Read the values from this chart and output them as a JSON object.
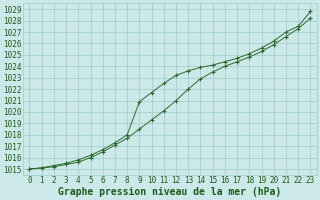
{
  "title": "Graphe pression niveau de la mer (hPa)",
  "x_values": [
    0,
    1,
    2,
    3,
    4,
    5,
    6,
    7,
    8,
    9,
    10,
    11,
    12,
    13,
    14,
    15,
    16,
    17,
    18,
    19,
    20,
    21,
    22,
    23
  ],
  "line1": [
    1015.0,
    1015.1,
    1015.3,
    1015.5,
    1015.8,
    1016.2,
    1016.7,
    1017.3,
    1018.0,
    1020.9,
    1021.7,
    1022.5,
    1023.2,
    1023.6,
    1023.9,
    1024.1,
    1024.4,
    1024.7,
    1025.1,
    1025.6,
    1026.2,
    1027.0,
    1027.5,
    1028.8
  ],
  "line2": [
    1015.0,
    1015.1,
    1015.2,
    1015.4,
    1015.6,
    1016.0,
    1016.5,
    1017.1,
    1017.7,
    1018.5,
    1019.3,
    1020.1,
    1021.0,
    1022.0,
    1022.9,
    1023.5,
    1024.0,
    1024.4,
    1024.8,
    1025.3,
    1025.9,
    1026.6,
    1027.3,
    1028.2
  ],
  "ylim": [
    1014.5,
    1029.5
  ],
  "yticks": [
    1015,
    1016,
    1017,
    1018,
    1019,
    1020,
    1021,
    1022,
    1023,
    1024,
    1025,
    1026,
    1027,
    1028,
    1029
  ],
  "xticks": [
    0,
    1,
    2,
    3,
    4,
    5,
    6,
    7,
    8,
    9,
    10,
    11,
    12,
    13,
    14,
    15,
    16,
    17,
    18,
    19,
    20,
    21,
    22,
    23
  ],
  "line_color": "#2d6a2d",
  "bg_color": "#cce8e8",
  "grid_color": "#99cccc",
  "title_color": "#1a5c1a",
  "title_fontsize": 7.0,
  "tick_fontsize": 5.5,
  "marker": "+"
}
